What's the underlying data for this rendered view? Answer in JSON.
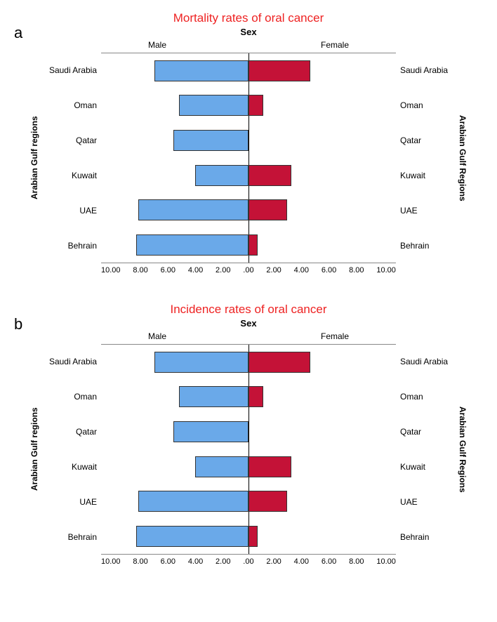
{
  "colors": {
    "male": "#6aa9e9",
    "female": "#c41237",
    "title": "#ee2222",
    "axis": "#000000"
  },
  "x": {
    "max": 11,
    "ticks_male": [
      "10.00",
      "8.00",
      "6.00",
      "4.00",
      "2.00"
    ],
    "center": ".00",
    "ticks_female": [
      "2.00",
      "4.00",
      "6.00",
      "8.00",
      "10.00"
    ]
  },
  "super_title": "Sex",
  "left_legend": "Male",
  "right_legend": "Female",
  "y_left_label": "Arabian Gulf regions",
  "y_right_label": "Arabian Gulf Regions",
  "categories": [
    "Saudi Arabia",
    "Oman",
    "Qatar",
    "Kuwait",
    "UAE",
    "Behrain"
  ],
  "charts": [
    {
      "letter": "a",
      "title": "Mortality rates of oral cancer",
      "rows": [
        {
          "male": 7.0,
          "female": 4.6
        },
        {
          "male": 5.2,
          "female": 1.1
        },
        {
          "male": 5.6,
          "female": 0.0
        },
        {
          "male": 4.0,
          "female": 3.2
        },
        {
          "male": 8.2,
          "female": 2.9
        },
        {
          "male": 8.4,
          "female": 0.7
        }
      ]
    },
    {
      "letter": "b",
      "title": "Incidence rates of oral cancer",
      "rows": [
        {
          "male": 7.0,
          "female": 4.6
        },
        {
          "male": 5.2,
          "female": 1.1
        },
        {
          "male": 5.6,
          "female": 0.0
        },
        {
          "male": 4.0,
          "female": 3.2
        },
        {
          "male": 8.2,
          "female": 2.9
        },
        {
          "male": 8.4,
          "female": 0.7
        }
      ]
    }
  ]
}
